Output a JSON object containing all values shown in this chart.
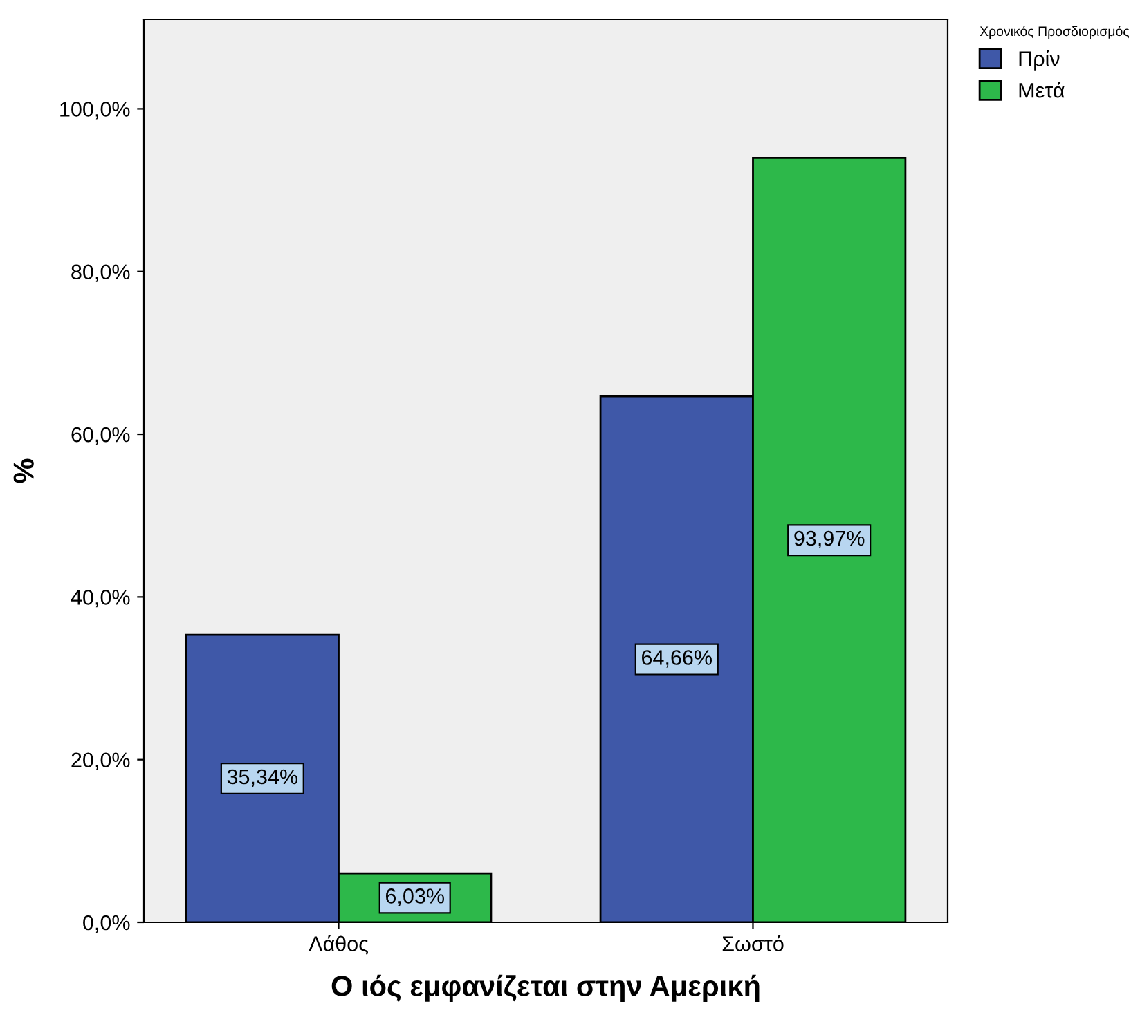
{
  "chart_data": {
    "type": "bar",
    "xlabel": "Ο ιός εμφανίζεται στην Αμερική",
    "ylabel": "%",
    "legend_title": "Χρονικός Προσδιορισμός",
    "categories": [
      "Λάθος",
      "Σωστό"
    ],
    "series": [
      {
        "name": "Πρίν",
        "color": "#3f58a8",
        "values": [
          35.34,
          64.66
        ],
        "value_labels": [
          "35,34%",
          "64,66%"
        ]
      },
      {
        "name": "Μετά",
        "color": "#2db84a",
        "values": [
          6.03,
          93.97
        ],
        "value_labels": [
          "6,03%",
          "93,97%"
        ]
      }
    ],
    "ylim": [
      0,
      111
    ],
    "yticks": [
      {
        "value": 0,
        "label": "0,0%"
      },
      {
        "value": 20,
        "label": "20,0%"
      },
      {
        "value": 40,
        "label": "40,0%"
      },
      {
        "value": 60,
        "label": "60,0%"
      },
      {
        "value": 80,
        "label": "80,0%"
      },
      {
        "value": 100,
        "label": "100,0%"
      }
    ],
    "grid": false,
    "legend": "top right"
  }
}
